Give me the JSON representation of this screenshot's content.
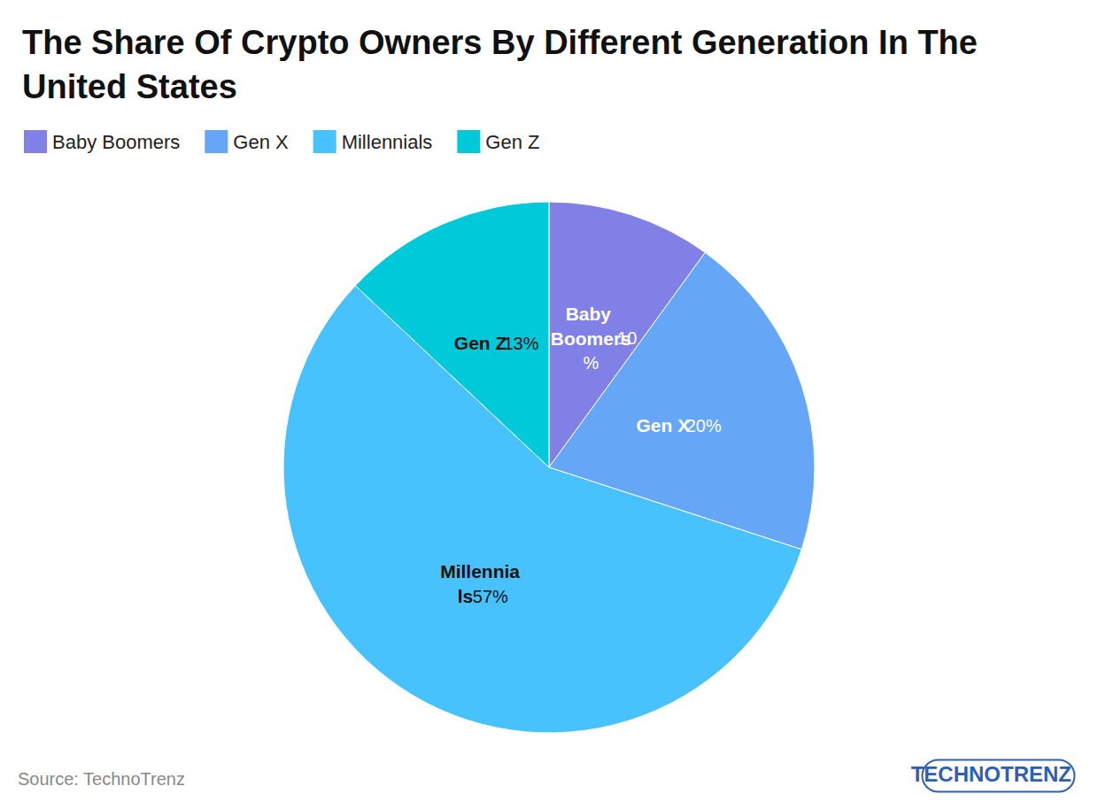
{
  "chart_data": {
    "type": "pie",
    "title": "The Share Of Crypto Owners By Different Generation In The United States",
    "categories": [
      "Baby Boomers",
      "Gen X",
      "Millennials",
      "Gen Z"
    ],
    "values": [
      10,
      20,
      57,
      13
    ],
    "value_labels": [
      "10%",
      "20%",
      "57%",
      "13%"
    ],
    "colors": [
      "#8080e6",
      "#66a6f6",
      "#48c2fc",
      "#00c9d9"
    ],
    "data_labels": true,
    "legend": "top-left",
    "source": "Source: TechnoTrenz",
    "watermark": "TECHNOTRENZ"
  }
}
